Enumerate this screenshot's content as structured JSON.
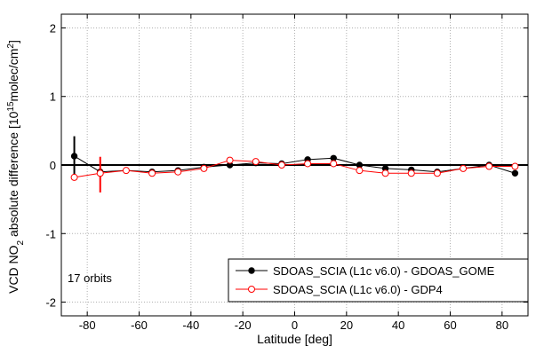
{
  "chart_data": {
    "type": "line",
    "xlabel": "Latitude [deg]",
    "ylabel_prefix": "VCD NO",
    "ylabel_sub": "2",
    "ylabel_mid": " absolute difference [10",
    "ylabel_sup": "15",
    "ylabel_unit": "molec/cm",
    "ylabel_sup2": "2",
    "ylabel_end": "]",
    "xlim": [
      -90,
      90
    ],
    "ylim": [
      -2.2,
      2.2
    ],
    "xticks": [
      -80,
      -60,
      -40,
      -20,
      0,
      20,
      40,
      60,
      80
    ],
    "xtick_labels": [
      "-80",
      "-60",
      "-40",
      "-20",
      "0",
      "20",
      "40",
      "60",
      "80"
    ],
    "yticks": [
      -2,
      -1,
      0,
      1,
      2
    ],
    "ytick_labels": [
      "-2",
      "-1",
      "0",
      "1",
      "2"
    ],
    "grid": true,
    "zero_line": true,
    "legend_position": "bottom-right",
    "annotation": "17 orbits",
    "series": [
      {
        "name": "SDOAS_SCIA (L1c v6.0) - GDOAS_GOME",
        "color": "#000000",
        "marker": "filled-circle",
        "x": [
          -85,
          -75,
          -65,
          -55,
          -45,
          -35,
          -25,
          -15,
          -5,
          5,
          15,
          25,
          35,
          45,
          55,
          65,
          75,
          85
        ],
        "y": [
          0.13,
          -0.1,
          -0.08,
          -0.1,
          -0.08,
          -0.03,
          0.0,
          0.03,
          0.02,
          0.08,
          0.1,
          0.0,
          -0.05,
          -0.07,
          -0.1,
          -0.05,
          0.0,
          -0.12
        ],
        "error_bars": [
          {
            "x": -85,
            "low": -0.15,
            "high": 0.42
          }
        ]
      },
      {
        "name": "SDOAS_SCIA (L1c v6.0) - GDP4",
        "color": "#ff0000",
        "marker": "open-circle",
        "x": [
          -85,
          -75,
          -65,
          -55,
          -45,
          -35,
          -25,
          -15,
          -5,
          5,
          15,
          25,
          35,
          45,
          55,
          65,
          75,
          85
        ],
        "y": [
          -0.18,
          -0.12,
          -0.08,
          -0.12,
          -0.1,
          -0.05,
          0.07,
          0.05,
          0.0,
          0.02,
          0.02,
          -0.08,
          -0.12,
          -0.12,
          -0.12,
          -0.05,
          -0.02,
          -0.02
        ],
        "error_bars": [
          {
            "x": -75,
            "low": -0.4,
            "high": 0.12
          }
        ]
      }
    ]
  }
}
